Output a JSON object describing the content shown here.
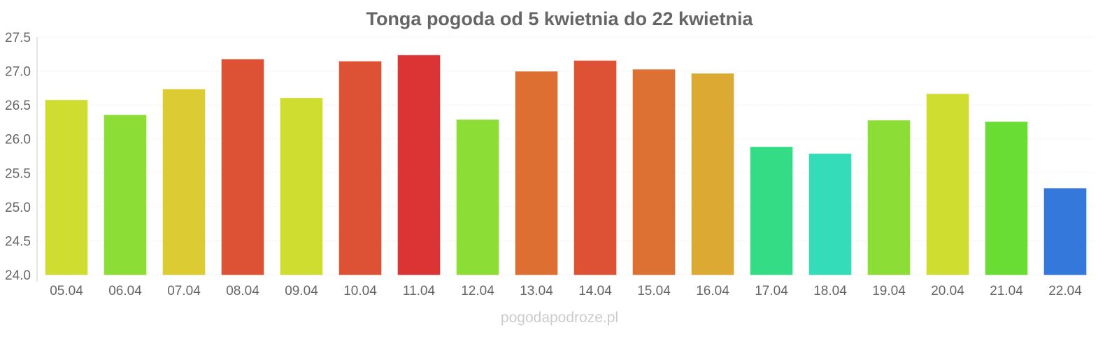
{
  "chart_data": {
    "type": "bar",
    "title": "Tonga pogoda od 5 kwietnia do 22 kwietnia",
    "xlabel": "",
    "ylabel": "",
    "ylim": [
      24.0,
      27.5
    ],
    "yticks": [
      "24.0",
      "24.5",
      "25.0",
      "25.5",
      "26.0",
      "26.5",
      "27.0",
      "27.5"
    ],
    "grid": true,
    "categories": [
      "05.04",
      "06.04",
      "07.04",
      "08.04",
      "09.04",
      "10.04",
      "11.04",
      "12.04",
      "13.04",
      "14.04",
      "15.04",
      "16.04",
      "17.04",
      "18.04",
      "19.04",
      "20.04",
      "21.04",
      "22.04"
    ],
    "values": [
      26.57,
      26.35,
      26.73,
      27.17,
      26.6,
      27.14,
      27.23,
      26.28,
      26.99,
      27.15,
      27.02,
      26.96,
      25.88,
      25.78,
      26.27,
      26.66,
      26.25,
      25.27
    ],
    "colors": [
      "#cfdd31",
      "#8cdd35",
      "#dccb33",
      "#dd5134",
      "#cfdd31",
      "#dd5134",
      "#dc3334",
      "#8cdd35",
      "#dd6f33",
      "#dd5134",
      "#dd7033",
      "#dca933",
      "#34dd85",
      "#34dcba",
      "#8cdd35",
      "#cfdd31",
      "#69dd34",
      "#3478dc"
    ]
  },
  "watermark": "pogodapodroze.pl"
}
